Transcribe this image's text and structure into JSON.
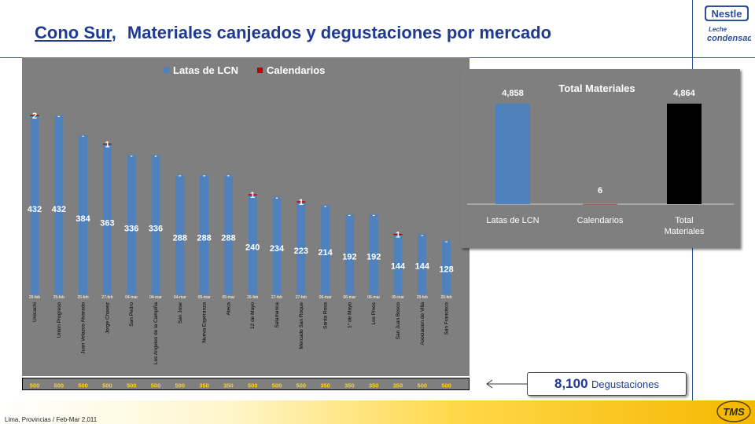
{
  "header": {
    "region": "Cono Sur",
    "separator": ",",
    "subtitle": "Materiales canjeados y degustaciones por mercado",
    "logo_brand": "Nestle",
    "logo_line1": "Leche",
    "logo_line2": "condensada"
  },
  "chart_data": [
    {
      "type": "bar",
      "legend": [
        "Latas de LCN",
        "Calendarios"
      ],
      "legend_position": "top",
      "grid": false,
      "categories": [
        "Unicachi",
        "Union Progreso",
        "Juan Velazco Alvarado",
        "Jorge Chavez",
        "San Pedro",
        "Los Angeles de la Campiña",
        "San Jose",
        "Nueva Esperanza",
        "Ateca",
        "12 de Mayo",
        "Salamanca",
        "Mercado San Roque",
        "Santa Rosa",
        "1° de Mayo",
        "Los Pinos",
        "San Juan Bosco",
        "Asociacion de Villa",
        "San Francisco"
      ],
      "dates": [
        "26-feb",
        "25-feb",
        "25-feb",
        "27-feb",
        "04-mar",
        "04-mar",
        "04-mar",
        "05-mar",
        "05-mar",
        "26-feb",
        "27-feb",
        "27-feb",
        "06-mar",
        "06-mar",
        "06-mar",
        "05-mar",
        "25-feb",
        "26-feb"
      ],
      "series": [
        {
          "name": "Latas de LCN",
          "color": "#4f81bd",
          "values": [
            432,
            432,
            384,
            363,
            336,
            336,
            288,
            288,
            288,
            240,
            234,
            223,
            214,
            192,
            192,
            144,
            144,
            128
          ],
          "labels": [
            "432",
            "432",
            "384",
            "363",
            "336",
            "336",
            "288",
            "288",
            "288",
            "240",
            "234",
            "223",
            "214",
            "192",
            "192",
            "144",
            "144",
            "128"
          ]
        },
        {
          "name": "Calendarios",
          "color": "#c00000",
          "values": [
            2,
            0,
            0,
            1,
            0,
            0,
            0,
            0,
            0,
            1,
            0,
            1,
            0,
            0,
            0,
            1,
            0,
            0
          ],
          "labels": [
            "2",
            "-",
            "-",
            "1",
            "-",
            "-",
            "-",
            "-",
            "-",
            "1",
            "-",
            "1",
            "-",
            "-",
            "-",
            "1",
            "-",
            "-"
          ]
        }
      ],
      "degustaciones": [
        "500",
        "500",
        "500",
        "500",
        "500",
        "500",
        "500",
        "350",
        "350",
        "500",
        "500",
        "500",
        "350",
        "350",
        "350",
        "350",
        "500",
        "500"
      ]
    },
    {
      "type": "bar",
      "title": "Total  Materiales",
      "categories": [
        "Latas de LCN",
        "Calendarios",
        "Total Materiales"
      ],
      "values": [
        4858,
        6,
        4864
      ],
      "labels": [
        "4,858",
        "6",
        "4,864"
      ],
      "colors": [
        "#4f81bd",
        "#c00000",
        "#000000"
      ]
    }
  ],
  "degustaciones_total": {
    "number": "8,100",
    "label": "Degustaciones"
  },
  "footer": {
    "text": "Lima, Provincias / Feb-Mar 2,011",
    "logo": "TMS"
  }
}
